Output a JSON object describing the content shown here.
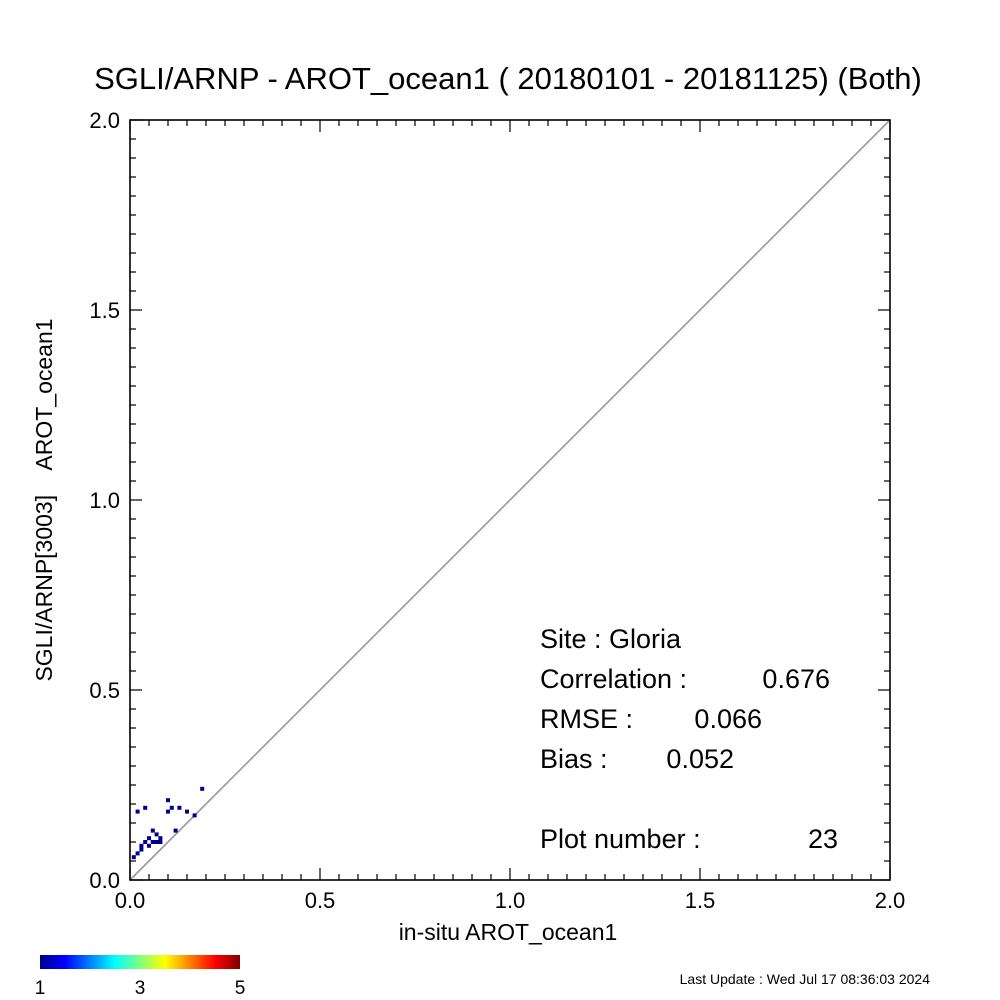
{
  "chart_data": {
    "type": "scatter",
    "title": "SGLI/ARNP - AROT_ocean1 ( 20180101 - 20181125) (Both)",
    "xlabel": "in-situ AROT_ocean1",
    "ylabel": "SGLI/ARNP[3003]    AROT_ocean1",
    "xlim": [
      0.0,
      2.0
    ],
    "ylim": [
      0.0,
      2.0
    ],
    "x_ticks": [
      "0.0",
      "0.5",
      "1.0",
      "1.5",
      "2.0"
    ],
    "y_ticks": [
      "0.0",
      "0.5",
      "1.0",
      "1.5",
      "2.0"
    ],
    "one_to_one_line": true,
    "points": [
      {
        "x": 0.02,
        "y": 0.07,
        "count": 1
      },
      {
        "x": 0.03,
        "y": 0.08,
        "count": 1
      },
      {
        "x": 0.03,
        "y": 0.09,
        "count": 1
      },
      {
        "x": 0.04,
        "y": 0.1,
        "count": 1
      },
      {
        "x": 0.05,
        "y": 0.11,
        "count": 1
      },
      {
        "x": 0.05,
        "y": 0.09,
        "count": 1
      },
      {
        "x": 0.06,
        "y": 0.1,
        "count": 1
      },
      {
        "x": 0.06,
        "y": 0.13,
        "count": 1
      },
      {
        "x": 0.07,
        "y": 0.1,
        "count": 1
      },
      {
        "x": 0.07,
        "y": 0.12,
        "count": 1
      },
      {
        "x": 0.08,
        "y": 0.11,
        "count": 1
      },
      {
        "x": 0.08,
        "y": 0.1,
        "count": 1
      },
      {
        "x": 0.02,
        "y": 0.18,
        "count": 1
      },
      {
        "x": 0.04,
        "y": 0.19,
        "count": 1
      },
      {
        "x": 0.1,
        "y": 0.21,
        "count": 1
      },
      {
        "x": 0.1,
        "y": 0.18,
        "count": 1
      },
      {
        "x": 0.11,
        "y": 0.19,
        "count": 1
      },
      {
        "x": 0.12,
        "y": 0.13,
        "count": 1
      },
      {
        "x": 0.13,
        "y": 0.19,
        "count": 1
      },
      {
        "x": 0.15,
        "y": 0.18,
        "count": 1
      },
      {
        "x": 0.17,
        "y": 0.17,
        "count": 1
      },
      {
        "x": 0.19,
        "y": 0.24,
        "count": 1
      },
      {
        "x": 0.01,
        "y": 0.06,
        "count": 1
      }
    ],
    "colorbar": {
      "min": 1,
      "max": 5,
      "tick_labels": [
        "1",
        "3",
        "5"
      ],
      "colormap": "jet"
    }
  },
  "stats": {
    "site": "Site : Gloria",
    "correlation_label": "Correlation :",
    "correlation_value": "0.676",
    "rmse_label": "RMSE :",
    "rmse_value": "0.066",
    "bias_label": "Bias :",
    "bias_value": "0.052",
    "plot_number_label": "Plot number :",
    "plot_number_value": "23"
  },
  "footer": "Last Update : Wed Jul 17 08:36:03 2024",
  "colors": {
    "point": "#00008f",
    "one_to_one_line": "#999999",
    "axis": "#000000"
  }
}
